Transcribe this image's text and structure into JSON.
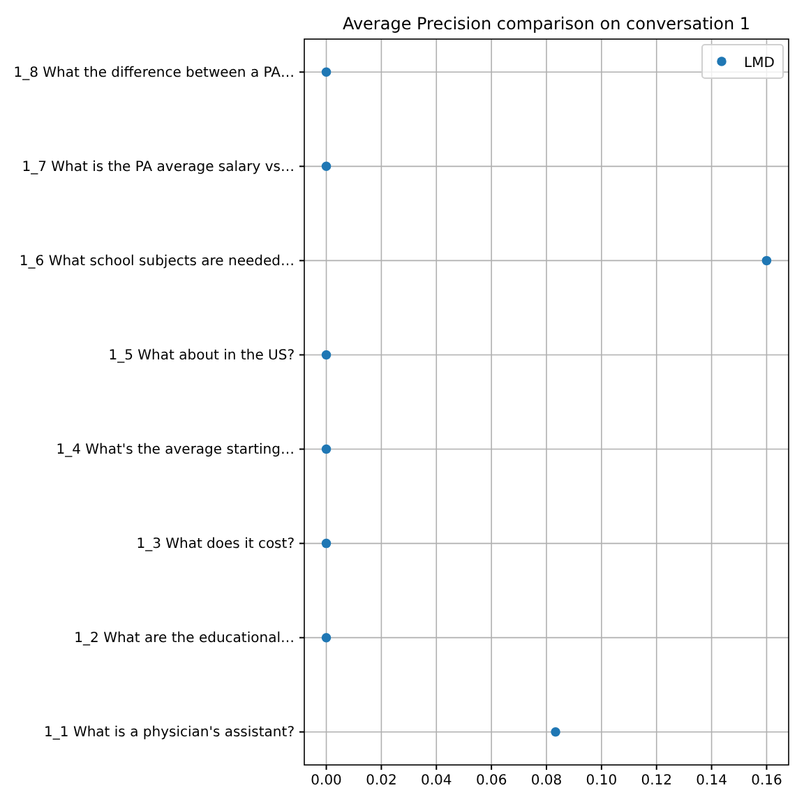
{
  "chart_data": {
    "type": "scatter",
    "title": "Average Precision comparison on conversation 1",
    "orientation": "horizontal",
    "categories": [
      "1_8 What the difference between a PA…",
      "1_7 What is the PA average salary vs…",
      "1_6 What school subjects are needed…",
      "1_5 What about in the US?",
      "1_4 What's the average starting…",
      "1_3 What does it cost?",
      "1_2 What are the educational…",
      "1_1 What is a physician's assistant?"
    ],
    "series": [
      {
        "name": "LMD",
        "color": "#1f77b4",
        "values": [
          0,
          0,
          0.16,
          0,
          0,
          0,
          0,
          0.0833
        ]
      }
    ],
    "xlim": [
      -0.008,
      0.168
    ],
    "xticks": [
      {
        "value": 0,
        "label": "0.00"
      },
      {
        "value": 0.02,
        "label": "0.02"
      },
      {
        "value": 0.04,
        "label": "0.04"
      },
      {
        "value": 0.06,
        "label": "0.06"
      },
      {
        "value": 0.08,
        "label": "0.08"
      },
      {
        "value": 0.1,
        "label": "0.10"
      },
      {
        "value": 0.12,
        "label": "0.12"
      },
      {
        "value": 0.14,
        "label": "0.14"
      },
      {
        "value": 0.16,
        "label": "0.16"
      }
    ],
    "grid": true,
    "legend": "top right",
    "marker": "circle"
  }
}
